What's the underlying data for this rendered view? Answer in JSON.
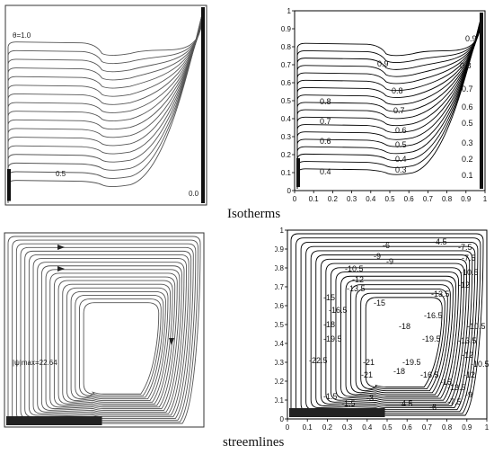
{
  "captions": {
    "isotherms": "Isotherms",
    "streamlines": "streemlines"
  },
  "top_left": {
    "theta_label": "θ=1.0",
    "mid_label": "0.5",
    "zero_label": "0.0"
  },
  "top_right": {
    "contour_labels": [
      "0.9",
      "0.9",
      "0.8",
      "0.8",
      "0.8",
      "0.7",
      "0.7",
      "0.7",
      "0.6",
      "0.6",
      "0.6",
      "0.5",
      "0.5",
      "0.4",
      "0.4",
      "0.3",
      "0.3",
      "0.2",
      "0.1"
    ],
    "x_ticks": [
      "0",
      "0.1",
      "0.2",
      "0.3",
      "0.4",
      "0.5",
      "0.6",
      "0.7",
      "0.8",
      "0.9",
      "1"
    ],
    "y_ticks": [
      "0",
      "0.1",
      "0.2",
      "0.3",
      "0.4",
      "0.5",
      "0.6",
      "0.7",
      "0.8",
      "0.9",
      "1"
    ]
  },
  "bottom_left": {
    "psi_label": "|ψ|max=22.64"
  },
  "bottom_right": {
    "contour_labels": [
      "-4.5",
      "-6",
      "-7.5",
      "-9",
      "-7.5",
      "-10.5",
      "-9",
      "-10.5",
      "-12",
      "-12",
      "-13.5",
      "-13.5",
      "-15",
      "-15",
      "-16.5",
      "-16.5",
      "-18",
      "-18",
      "-19.5",
      "-19.5",
      "-21",
      "-22.5",
      "-21",
      "-19.5",
      "-18",
      "-16.5",
      "-15",
      "-13.5",
      "-12",
      "-10.5",
      "-9",
      "-7.5",
      "-6",
      "-4.5",
      "-3",
      "-1.5",
      "-13.5",
      "-12",
      "-10.5",
      "-1.5"
    ],
    "x_ticks": [
      "0",
      "0.1",
      "0.2",
      "0.3",
      "0.4",
      "0.5",
      "0.6",
      "0.7",
      "0.8",
      "0.9",
      "1"
    ],
    "y_ticks": [
      "0",
      "0.1",
      "0.2",
      "0.3",
      "0.4",
      "0.5",
      "0.6",
      "0.7",
      "0.8",
      "0.9",
      "1"
    ]
  }
}
